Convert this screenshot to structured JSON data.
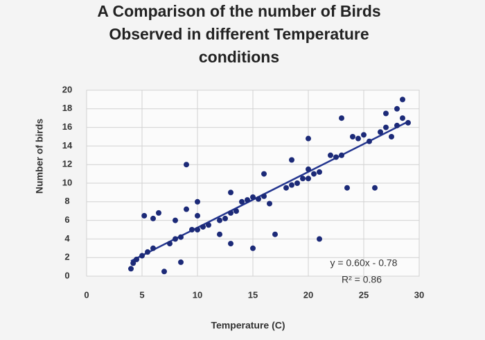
{
  "chart_data": {
    "type": "scatter",
    "title": "A Comparison of the number of Birds Observed in different Temperature conditions",
    "x_label": "Temperature (C)",
    "y_label": "Number of birds",
    "x": [
      4,
      4.2,
      4.5,
      5,
      5.5,
      6,
      6,
      6.5,
      5.2,
      7,
      7.5,
      8,
      8.5,
      8,
      8.5,
      9,
      9.5,
      9,
      10,
      10.5,
      10,
      10,
      11,
      12,
      12.5,
      12,
      13,
      13,
      13.5,
      13,
      14,
      14.5,
      15,
      15,
      15.5,
      16,
      16,
      16.5,
      17,
      18,
      18.5,
      18.5,
      19,
      19.5,
      20,
      20,
      20,
      20.5,
      21,
      21,
      22,
      22.5,
      23,
      23,
      23.5,
      24,
      24.5,
      25,
      25.5,
      26,
      26.5,
      27,
      27,
      27.5,
      28,
      28,
      28.5,
      29,
      28.5
    ],
    "values": [
      0.8,
      1.4,
      1.8,
      2.2,
      2.6,
      3,
      6.2,
      6.8,
      6.5,
      0.5,
      3.5,
      4,
      4.2,
      6,
      1.5,
      12,
      5,
      7.2,
      5,
      5.3,
      6.5,
      8,
      5.5,
      6,
      6.2,
      4.5,
      6.8,
      9,
      7,
      3.5,
      8,
      8.2,
      8.5,
      3,
      8.3,
      8.6,
      11,
      7.8,
      4.5,
      9.5,
      9.8,
      12.5,
      10,
      10.5,
      10.5,
      11.5,
      14.8,
      11,
      11.2,
      4,
      13,
      12.8,
      13,
      17,
      9.5,
      15,
      14.8,
      15.2,
      14.5,
      9.5,
      15.5,
      16,
      17.5,
      15,
      16.2,
      18,
      17,
      16.5,
      19
    ],
    "color": "#1c2a78",
    "xlim": [
      0,
      30
    ],
    "xticks": [
      0,
      5,
      10,
      15,
      20,
      25,
      30
    ],
    "ylim": [
      0,
      20
    ],
    "yticks": [
      0,
      2,
      4,
      6,
      8,
      10,
      12,
      14,
      16,
      18,
      20
    ],
    "grid": true,
    "trendline": {
      "equation": "y = 0.60x - 0.78",
      "r_squared": "R² = 0.86",
      "slope": 0.6,
      "intercept": -0.78,
      "x_range": [
        4,
        29
      ],
      "color": "#23358f"
    }
  }
}
